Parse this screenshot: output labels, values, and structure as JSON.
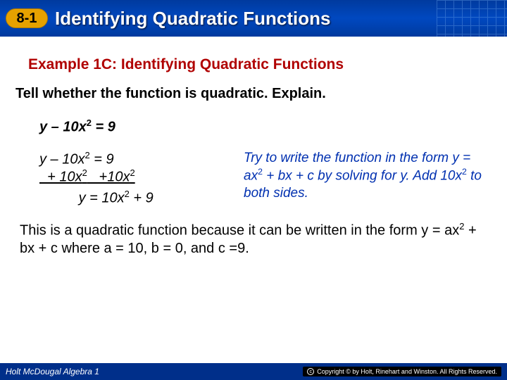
{
  "header": {
    "badge": "8-1",
    "title": "Identifying Quadratic Functions",
    "bg_gradient": [
      "#003a9e",
      "#0048c0",
      "#003a9e"
    ],
    "badge_bg": "#e6a100",
    "title_color": "#ffffff"
  },
  "example": {
    "title": "Example 1C: Identifying Quadratic Functions",
    "title_color": "#b00000",
    "title_fontsize": 21
  },
  "instruction": {
    "text": "Tell whether the function is quadratic. Explain.",
    "fontsize": 20
  },
  "problem": {
    "equation_html": "y – 10x<sup>2</sup> = 9"
  },
  "work": {
    "line1_html": "y – 10x<sup>2</sup> = 9",
    "line2_html": "  + 10x<sup>2</sup>   +10x<sup>2</sup>",
    "line3_html": "          y = 10x<sup>2</sup> + 9",
    "explain_html": "Try to write the function in the form y = ax<sup>2</sup> + bx + c by solving for y. Add 10x<sup>2</sup> to both sides.",
    "explain_color": "#0030b0"
  },
  "conclusion": {
    "text_html": "This is a quadratic function because it can be written in the form y = ax<sup>2</sup> + bx + c where a = 10, b = 0, and c =9."
  },
  "footer": {
    "left": "Holt McDougal Algebra 1",
    "right": "Copyright © by Holt, Rinehart and Winston. All Rights Reserved.",
    "bg": "#002f8a"
  }
}
